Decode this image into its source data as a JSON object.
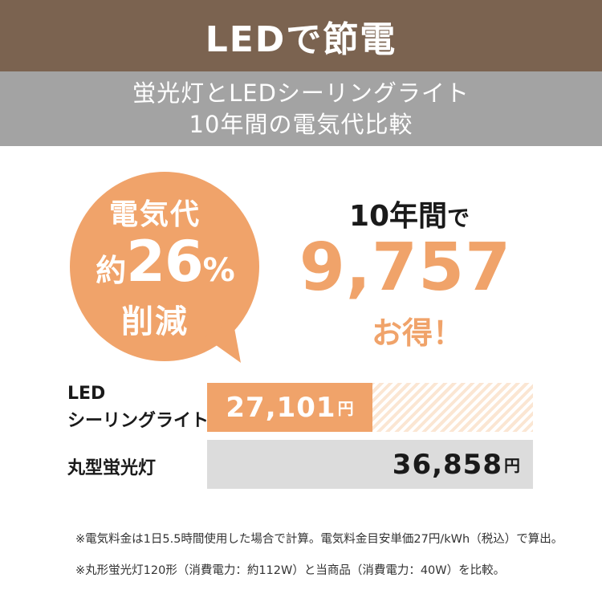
{
  "header": {
    "title": "LEDで節電"
  },
  "subheader": {
    "line1": "蛍光灯とLEDシーリングライト",
    "line2": "10年間の電気代比較"
  },
  "bubble": {
    "line1": "電気代",
    "prefix": "約",
    "percent": "26",
    "percent_sign": "%",
    "line3": "削減"
  },
  "savings": {
    "years_big": "10年間",
    "years_small": "で",
    "amount": "9,757",
    "tail": "お得！"
  },
  "comparison": {
    "led": {
      "label_line1": "LED",
      "label_line2": "シーリングライト",
      "value": "27,101",
      "unit": "円",
      "amount_yen": 27101
    },
    "fluorescent": {
      "label": "丸型蛍光灯",
      "value": "36,858",
      "unit": "円",
      "amount_yen": 36858
    }
  },
  "notes": {
    "note1": "※電気料金は1日5.5時間使用した場合で計算。電気料金目安単価27円/kWh（税込）で算出。",
    "note2": "※丸形蛍光灯120形（消費電力：約112W）と当商品（消費電力：40W）を比較。"
  },
  "colors": {
    "header_bg": "#7b6350",
    "subheader_bg": "#a3a3a3",
    "accent": "#f0a36a",
    "bar_gray": "#dcdcdc"
  }
}
